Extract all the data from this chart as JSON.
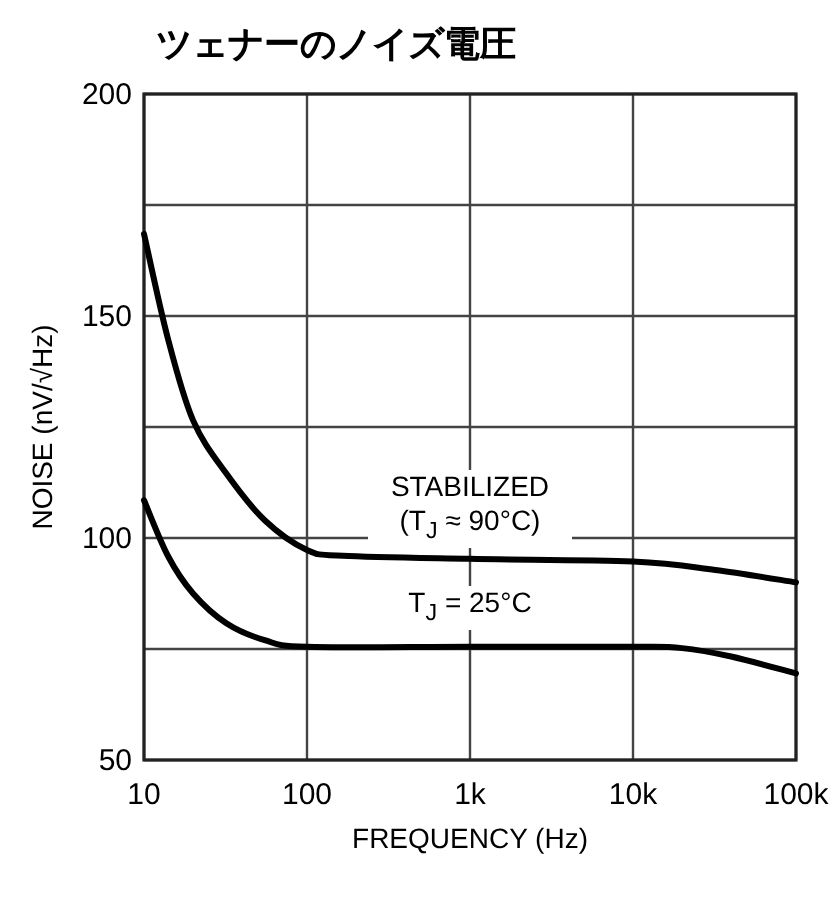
{
  "chart_data": {
    "type": "line",
    "title": "ツェナーのノイズ電圧",
    "xlabel": "FREQUENCY (Hz)",
    "ylabel": "NOISE (nV/√Hz)",
    "log": "x",
    "grid": true,
    "marker": "none",
    "line_style": "solid",
    "xlim": [
      10,
      100000
    ],
    "ylim": [
      50,
      200
    ],
    "xticks": [
      10,
      100,
      {
        "value": 1000,
        "label": "1k"
      },
      {
        "value": 10000,
        "label": "10k"
      },
      {
        "value": 100000,
        "label": "100k"
      }
    ],
    "yticks": [
      50,
      100,
      150,
      200
    ],
    "series": [
      {
        "name": "STABILIZED (T$_{J}$ ≈ 90°C)",
        "color": "#000000",
        "x": [
          10,
          14,
          20,
          32,
          55,
          100,
          166,
          1000,
          10000,
          32000,
          100000
        ],
        "values": [
          168.5,
          145,
          126.5,
          114.5,
          104,
          97.3,
          96,
          95.3,
          94.7,
          92.8,
          90
        ]
      },
      {
        "name": "T$_{J}$ = 25°C",
        "color": "#000000",
        "x": [
          10,
          14,
          20,
          32,
          55,
          100,
          1000,
          10000,
          20000,
          40000,
          100000
        ],
        "values": [
          108.5,
          96,
          87.5,
          80.8,
          77,
          75.5,
          75.5,
          75.5,
          75.2,
          73.3,
          69.5
        ]
      }
    ]
  }
}
